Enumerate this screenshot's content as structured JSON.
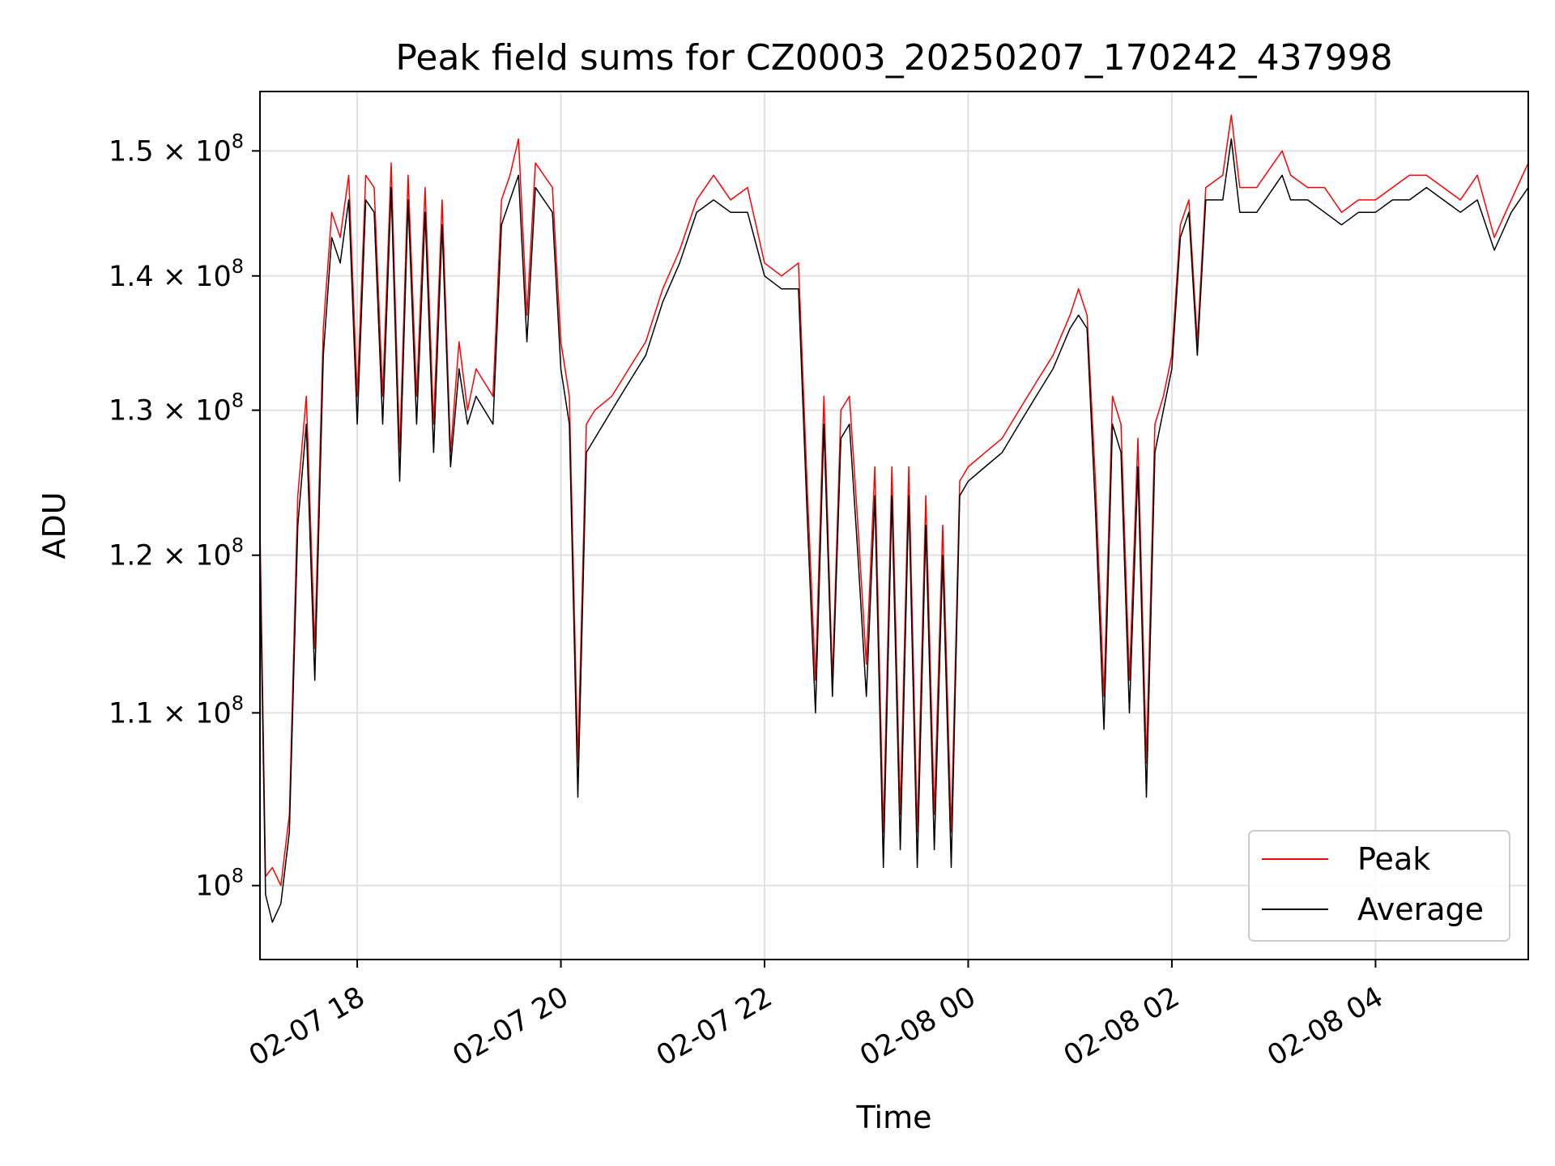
{
  "chart_data": {
    "type": "line",
    "title": "Peak field sums for CZ0003_20250207_170242_437998",
    "xlabel": "Time",
    "ylabel": "ADU",
    "y_scale": "log",
    "ylim": [
      96000000,
      155000000
    ],
    "xlim": [
      "2025-02-07T17:02:42",
      "2025-02-08T05:30:00"
    ],
    "grid": true,
    "legend_position": "lower right",
    "x_ticks": [
      {
        "t": "2025-02-07T18:00",
        "label": "02-07 18"
      },
      {
        "t": "2025-02-07T20:00",
        "label": "02-07 20"
      },
      {
        "t": "2025-02-07T22:00",
        "label": "02-07 22"
      },
      {
        "t": "2025-02-08T00:00",
        "label": "02-08 00"
      },
      {
        "t": "2025-02-08T02:00",
        "label": "02-08 02"
      },
      {
        "t": "2025-02-08T04:00",
        "label": "02-08 04"
      }
    ],
    "y_ticks": [
      {
        "v": 100000000,
        "label": "10",
        "exp": "8"
      },
      {
        "v": 110000000,
        "label": "1.1 × 10",
        "exp": "8"
      },
      {
        "v": 120000000,
        "label": "1.2 × 10",
        "exp": "8"
      },
      {
        "v": 130000000,
        "label": "1.3 × 10",
        "exp": "8"
      },
      {
        "v": 140000000,
        "label": "1.4 × 10",
        "exp": "8"
      },
      {
        "v": 150000000,
        "label": "1.5 × 10",
        "exp": "8"
      }
    ],
    "series": [
      {
        "name": "Peak",
        "color": "#ff0000",
        "points": [
          [
            "2025-02-07T17:02:42",
            122000000
          ],
          [
            "2025-02-07T17:06",
            100500000
          ],
          [
            "2025-02-07T17:10",
            101000000
          ],
          [
            "2025-02-07T17:15",
            100000000
          ],
          [
            "2025-02-07T17:20",
            104000000
          ],
          [
            "2025-02-07T17:25",
            124000000
          ],
          [
            "2025-02-07T17:30",
            131000000
          ],
          [
            "2025-02-07T17:35",
            114000000
          ],
          [
            "2025-02-07T17:40",
            136000000
          ],
          [
            "2025-02-07T17:45",
            145000000
          ],
          [
            "2025-02-07T17:50",
            143000000
          ],
          [
            "2025-02-07T17:55",
            148000000
          ],
          [
            "2025-02-07T18:00",
            131000000
          ],
          [
            "2025-02-07T18:05",
            148000000
          ],
          [
            "2025-02-07T18:10",
            147000000
          ],
          [
            "2025-02-07T18:15",
            131000000
          ],
          [
            "2025-02-07T18:20",
            149000000
          ],
          [
            "2025-02-07T18:25",
            127000000
          ],
          [
            "2025-02-07T18:30",
            148000000
          ],
          [
            "2025-02-07T18:35",
            131000000
          ],
          [
            "2025-02-07T18:40",
            147000000
          ],
          [
            "2025-02-07T18:45",
            129000000
          ],
          [
            "2025-02-07T18:50",
            146000000
          ],
          [
            "2025-02-07T18:55",
            127000000
          ],
          [
            "2025-02-07T19:00",
            135000000
          ],
          [
            "2025-02-07T19:05",
            130000000
          ],
          [
            "2025-02-07T19:10",
            133000000
          ],
          [
            "2025-02-07T19:15",
            132000000
          ],
          [
            "2025-02-07T19:20",
            131000000
          ],
          [
            "2025-02-07T19:25",
            146000000
          ],
          [
            "2025-02-07T19:30",
            148000000
          ],
          [
            "2025-02-07T19:35",
            151000000
          ],
          [
            "2025-02-07T19:40",
            137000000
          ],
          [
            "2025-02-07T19:45",
            149000000
          ],
          [
            "2025-02-07T19:50",
            148000000
          ],
          [
            "2025-02-07T19:55",
            147000000
          ],
          [
            "2025-02-07T20:00",
            135000000
          ],
          [
            "2025-02-07T20:05",
            131000000
          ],
          [
            "2025-02-07T20:10",
            107000000
          ],
          [
            "2025-02-07T20:15",
            129000000
          ],
          [
            "2025-02-07T20:20",
            130000000
          ],
          [
            "2025-02-07T20:30",
            131000000
          ],
          [
            "2025-02-07T20:40",
            133000000
          ],
          [
            "2025-02-07T20:50",
            135000000
          ],
          [
            "2025-02-07T21:00",
            139000000
          ],
          [
            "2025-02-07T21:10",
            142000000
          ],
          [
            "2025-02-07T21:20",
            146000000
          ],
          [
            "2025-02-07T21:30",
            148000000
          ],
          [
            "2025-02-07T21:40",
            146000000
          ],
          [
            "2025-02-07T21:50",
            147000000
          ],
          [
            "2025-02-07T22:00",
            141000000
          ],
          [
            "2025-02-07T22:10",
            140000000
          ],
          [
            "2025-02-07T22:20",
            141000000
          ],
          [
            "2025-02-07T22:25",
            125000000
          ],
          [
            "2025-02-07T22:30",
            112000000
          ],
          [
            "2025-02-07T22:35",
            131000000
          ],
          [
            "2025-02-07T22:40",
            112000000
          ],
          [
            "2025-02-07T22:45",
            130000000
          ],
          [
            "2025-02-07T22:50",
            131000000
          ],
          [
            "2025-02-07T22:55",
            122000000
          ],
          [
            "2025-02-07T23:00",
            113000000
          ],
          [
            "2025-02-07T23:05",
            126000000
          ],
          [
            "2025-02-07T23:10",
            103000000
          ],
          [
            "2025-02-07T23:15",
            126000000
          ],
          [
            "2025-02-07T23:20",
            104000000
          ],
          [
            "2025-02-07T23:25",
            126000000
          ],
          [
            "2025-02-07T23:30",
            103000000
          ],
          [
            "2025-02-07T23:35",
            124000000
          ],
          [
            "2025-02-07T23:40",
            104000000
          ],
          [
            "2025-02-07T23:45",
            122000000
          ],
          [
            "2025-02-07T23:50",
            103000000
          ],
          [
            "2025-02-07T23:55",
            125000000
          ],
          [
            "2025-02-08T00:00",
            126000000
          ],
          [
            "2025-02-08T00:10",
            127000000
          ],
          [
            "2025-02-08T00:20",
            128000000
          ],
          [
            "2025-02-08T00:30",
            130000000
          ],
          [
            "2025-02-08T00:40",
            132000000
          ],
          [
            "2025-02-08T00:50",
            134000000
          ],
          [
            "2025-02-08T01:00",
            137000000
          ],
          [
            "2025-02-08T01:05",
            139000000
          ],
          [
            "2025-02-08T01:10",
            137000000
          ],
          [
            "2025-02-08T01:15",
            125000000
          ],
          [
            "2025-02-08T01:20",
            111000000
          ],
          [
            "2025-02-08T01:25",
            131000000
          ],
          [
            "2025-02-08T01:30",
            129000000
          ],
          [
            "2025-02-08T01:35",
            112000000
          ],
          [
            "2025-02-08T01:40",
            128000000
          ],
          [
            "2025-02-08T01:45",
            107000000
          ],
          [
            "2025-02-08T01:50",
            129000000
          ],
          [
            "2025-02-08T01:55",
            131000000
          ],
          [
            "2025-02-08T02:00",
            134000000
          ],
          [
            "2025-02-08T02:05",
            144000000
          ],
          [
            "2025-02-08T02:10",
            146000000
          ],
          [
            "2025-02-08T02:15",
            135000000
          ],
          [
            "2025-02-08T02:20",
            147000000
          ],
          [
            "2025-02-08T02:30",
            148000000
          ],
          [
            "2025-02-08T02:35",
            153000000
          ],
          [
            "2025-02-08T02:40",
            147000000
          ],
          [
            "2025-02-08T02:50",
            147000000
          ],
          [
            "2025-02-08T03:00",
            149000000
          ],
          [
            "2025-02-08T03:05",
            150000000
          ],
          [
            "2025-02-08T03:10",
            148000000
          ],
          [
            "2025-02-08T03:20",
            147000000
          ],
          [
            "2025-02-08T03:30",
            147000000
          ],
          [
            "2025-02-08T03:40",
            145000000
          ],
          [
            "2025-02-08T03:50",
            146000000
          ],
          [
            "2025-02-08T04:00",
            146000000
          ],
          [
            "2025-02-08T04:10",
            147000000
          ],
          [
            "2025-02-08T04:20",
            148000000
          ],
          [
            "2025-02-08T04:30",
            148000000
          ],
          [
            "2025-02-08T04:40",
            147000000
          ],
          [
            "2025-02-08T04:50",
            146000000
          ],
          [
            "2025-02-08T05:00",
            148000000
          ],
          [
            "2025-02-08T05:10",
            143000000
          ],
          [
            "2025-02-08T05:20",
            146000000
          ],
          [
            "2025-02-08T05:30",
            149000000
          ]
        ]
      },
      {
        "name": "Average",
        "color": "#000000",
        "points": [
          [
            "2025-02-07T17:02:42",
            120000000
          ],
          [
            "2025-02-07T17:06",
            99500000
          ],
          [
            "2025-02-07T17:10",
            98000000
          ],
          [
            "2025-02-07T17:15",
            99000000
          ],
          [
            "2025-02-07T17:20",
            103000000
          ],
          [
            "2025-02-07T17:25",
            122000000
          ],
          [
            "2025-02-07T17:30",
            129000000
          ],
          [
            "2025-02-07T17:35",
            112000000
          ],
          [
            "2025-02-07T17:40",
            134000000
          ],
          [
            "2025-02-07T17:45",
            143000000
          ],
          [
            "2025-02-07T17:50",
            141000000
          ],
          [
            "2025-02-07T17:55",
            146000000
          ],
          [
            "2025-02-07T18:00",
            129000000
          ],
          [
            "2025-02-07T18:05",
            146000000
          ],
          [
            "2025-02-07T18:10",
            145000000
          ],
          [
            "2025-02-07T18:15",
            129000000
          ],
          [
            "2025-02-07T18:20",
            147000000
          ],
          [
            "2025-02-07T18:25",
            125000000
          ],
          [
            "2025-02-07T18:30",
            146000000
          ],
          [
            "2025-02-07T18:35",
            129000000
          ],
          [
            "2025-02-07T18:40",
            145000000
          ],
          [
            "2025-02-07T18:45",
            127000000
          ],
          [
            "2025-02-07T18:50",
            144000000
          ],
          [
            "2025-02-07T18:55",
            126000000
          ],
          [
            "2025-02-07T19:00",
            133000000
          ],
          [
            "2025-02-07T19:05",
            129000000
          ],
          [
            "2025-02-07T19:10",
            131000000
          ],
          [
            "2025-02-07T19:15",
            130000000
          ],
          [
            "2025-02-07T19:20",
            129000000
          ],
          [
            "2025-02-07T19:25",
            144000000
          ],
          [
            "2025-02-07T19:30",
            146000000
          ],
          [
            "2025-02-07T19:35",
            148000000
          ],
          [
            "2025-02-07T19:40",
            135000000
          ],
          [
            "2025-02-07T19:45",
            147000000
          ],
          [
            "2025-02-07T19:50",
            146000000
          ],
          [
            "2025-02-07T19:55",
            145000000
          ],
          [
            "2025-02-07T20:00",
            133000000
          ],
          [
            "2025-02-07T20:05",
            129000000
          ],
          [
            "2025-02-07T20:10",
            105000000
          ],
          [
            "2025-02-07T20:15",
            127000000
          ],
          [
            "2025-02-07T20:20",
            128000000
          ],
          [
            "2025-02-07T20:30",
            130000000
          ],
          [
            "2025-02-07T20:40",
            132000000
          ],
          [
            "2025-02-07T20:50",
            134000000
          ],
          [
            "2025-02-07T21:00",
            138000000
          ],
          [
            "2025-02-07T21:10",
            141000000
          ],
          [
            "2025-02-07T21:20",
            145000000
          ],
          [
            "2025-02-07T21:30",
            146000000
          ],
          [
            "2025-02-07T21:40",
            145000000
          ],
          [
            "2025-02-07T21:50",
            145000000
          ],
          [
            "2025-02-07T22:00",
            140000000
          ],
          [
            "2025-02-07T22:10",
            139000000
          ],
          [
            "2025-02-07T22:20",
            139000000
          ],
          [
            "2025-02-07T22:25",
            123000000
          ],
          [
            "2025-02-07T22:30",
            110000000
          ],
          [
            "2025-02-07T22:35",
            129000000
          ],
          [
            "2025-02-07T22:40",
            111000000
          ],
          [
            "2025-02-07T22:45",
            128000000
          ],
          [
            "2025-02-07T22:50",
            129000000
          ],
          [
            "2025-02-07T22:55",
            120000000
          ],
          [
            "2025-02-07T23:00",
            111000000
          ],
          [
            "2025-02-07T23:05",
            124000000
          ],
          [
            "2025-02-07T23:10",
            101000000
          ],
          [
            "2025-02-07T23:15",
            124000000
          ],
          [
            "2025-02-07T23:20",
            102000000
          ],
          [
            "2025-02-07T23:25",
            124000000
          ],
          [
            "2025-02-07T23:30",
            101000000
          ],
          [
            "2025-02-07T23:35",
            122000000
          ],
          [
            "2025-02-07T23:40",
            102000000
          ],
          [
            "2025-02-07T23:45",
            120000000
          ],
          [
            "2025-02-07T23:50",
            101000000
          ],
          [
            "2025-02-07T23:55",
            124000000
          ],
          [
            "2025-02-08T00:00",
            125000000
          ],
          [
            "2025-02-08T00:10",
            126000000
          ],
          [
            "2025-02-08T00:20",
            127000000
          ],
          [
            "2025-02-08T00:30",
            129000000
          ],
          [
            "2025-02-08T00:40",
            131000000
          ],
          [
            "2025-02-08T00:50",
            133000000
          ],
          [
            "2025-02-08T01:00",
            136000000
          ],
          [
            "2025-02-08T01:05",
            137000000
          ],
          [
            "2025-02-08T01:10",
            136000000
          ],
          [
            "2025-02-08T01:15",
            123000000
          ],
          [
            "2025-02-08T01:20",
            109000000
          ],
          [
            "2025-02-08T01:25",
            129000000
          ],
          [
            "2025-02-08T01:30",
            127000000
          ],
          [
            "2025-02-08T01:35",
            110000000
          ],
          [
            "2025-02-08T01:40",
            126000000
          ],
          [
            "2025-02-08T01:45",
            105000000
          ],
          [
            "2025-02-08T01:50",
            127000000
          ],
          [
            "2025-02-08T01:55",
            130000000
          ],
          [
            "2025-02-08T02:00",
            133000000
          ],
          [
            "2025-02-08T02:05",
            143000000
          ],
          [
            "2025-02-08T02:10",
            145000000
          ],
          [
            "2025-02-08T02:15",
            134000000
          ],
          [
            "2025-02-08T02:20",
            146000000
          ],
          [
            "2025-02-08T02:30",
            146000000
          ],
          [
            "2025-02-08T02:35",
            151000000
          ],
          [
            "2025-02-08T02:40",
            145000000
          ],
          [
            "2025-02-08T02:50",
            145000000
          ],
          [
            "2025-02-08T03:00",
            147000000
          ],
          [
            "2025-02-08T03:05",
            148000000
          ],
          [
            "2025-02-08T03:10",
            146000000
          ],
          [
            "2025-02-08T03:20",
            146000000
          ],
          [
            "2025-02-08T03:30",
            145000000
          ],
          [
            "2025-02-08T03:40",
            144000000
          ],
          [
            "2025-02-08T03:50",
            145000000
          ],
          [
            "2025-02-08T04:00",
            145000000
          ],
          [
            "2025-02-08T04:10",
            146000000
          ],
          [
            "2025-02-08T04:20",
            146000000
          ],
          [
            "2025-02-08T04:30",
            147000000
          ],
          [
            "2025-02-08T04:40",
            146000000
          ],
          [
            "2025-02-08T04:50",
            145000000
          ],
          [
            "2025-02-08T05:00",
            146000000
          ],
          [
            "2025-02-08T05:10",
            142000000
          ],
          [
            "2025-02-08T05:20",
            145000000
          ],
          [
            "2025-02-08T05:30",
            147000000
          ]
        ]
      }
    ]
  }
}
